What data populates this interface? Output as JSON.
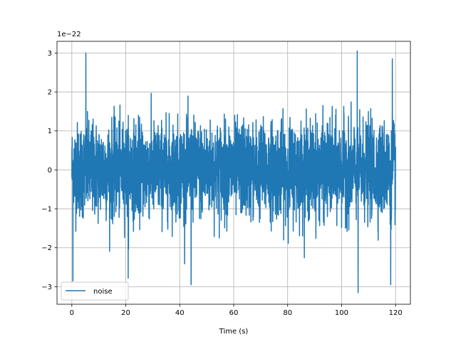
{
  "chart_data": {
    "type": "line",
    "title": "",
    "xlabel": "Time (s)",
    "ylabel": "",
    "y_offset_label": "1e−22",
    "xlim": [
      -5.5,
      125.5
    ],
    "ylim": [
      -3.45,
      3.3
    ],
    "x_ticks": [
      0,
      20,
      40,
      60,
      80,
      100,
      120
    ],
    "x_tick_labels": [
      "0",
      "20",
      "40",
      "60",
      "80",
      "100",
      "120"
    ],
    "y_ticks": [
      -3,
      -2,
      -1,
      0,
      1,
      2,
      3
    ],
    "y_tick_labels": [
      "−3",
      "−2",
      "−1",
      "0",
      "1",
      "2",
      "3"
    ],
    "grid": true,
    "legend_position": "lower-left",
    "line_color": "#1f77b4",
    "series": [
      {
        "name": "noise",
        "x_start": 0,
        "x_end": 120,
        "sample_count": 3000,
        "approx_std": 0.6,
        "approx_max": 3.0,
        "approx_min": -3.15,
        "peaks": [
          {
            "x": 5.2,
            "y": 3.0
          },
          {
            "x": 105.8,
            "y": 3.05
          },
          {
            "x": 106.1,
            "y": -3.15
          },
          {
            "x": 0.4,
            "y": -2.85
          },
          {
            "x": 44.2,
            "y": -2.95
          },
          {
            "x": 118.2,
            "y": -2.95
          },
          {
            "x": 118.8,
            "y": 2.85
          },
          {
            "x": 20.9,
            "y": -2.78
          }
        ]
      }
    ]
  }
}
